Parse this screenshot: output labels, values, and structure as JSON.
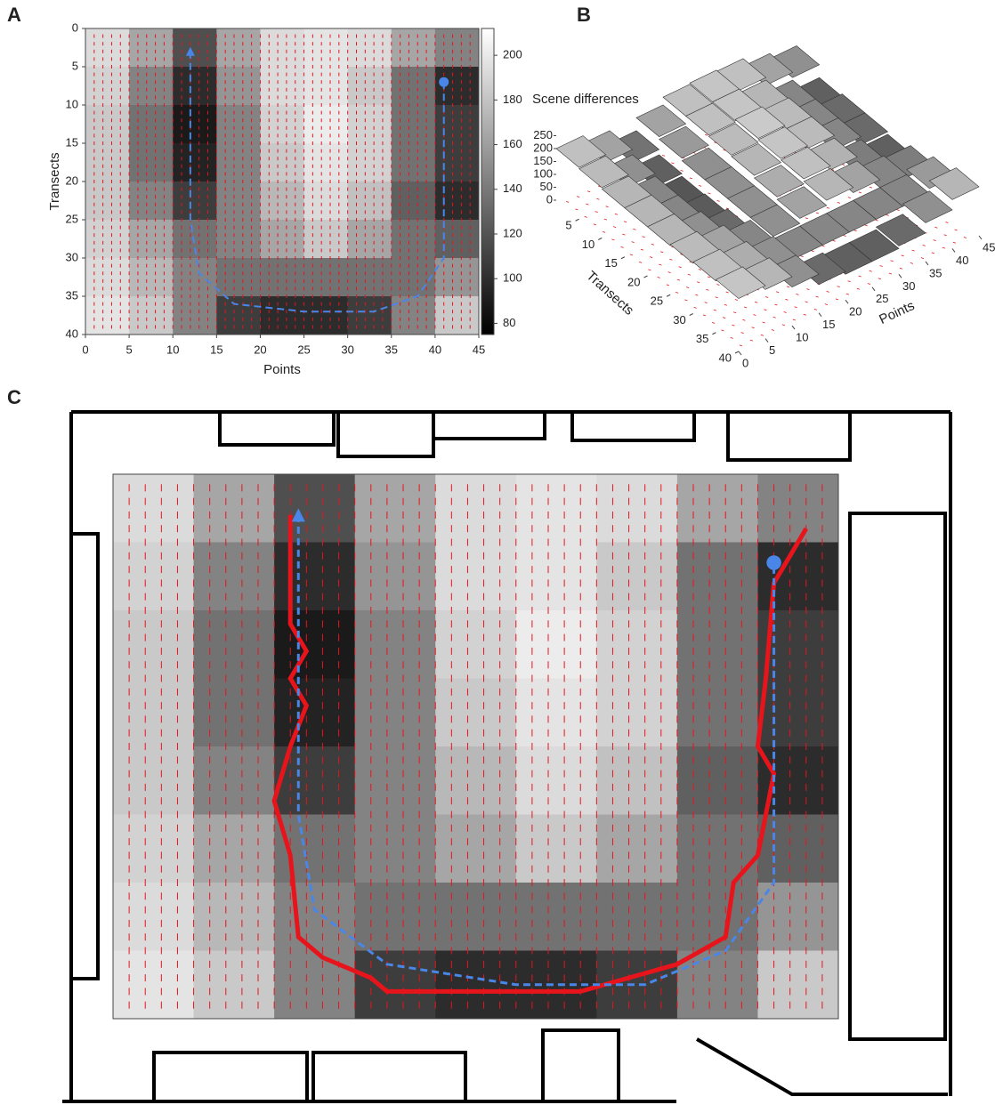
{
  "chart_data": [
    {
      "type": "heatmap",
      "label": "A",
      "xlabel": "Points",
      "ylabel": "Transects",
      "xlim": [
        0,
        45
      ],
      "xticks": [
        0,
        5,
        10,
        15,
        20,
        25,
        30,
        35,
        40,
        45
      ],
      "ylim": [
        0,
        40
      ],
      "yticks": [
        0,
        5,
        10,
        15,
        20,
        25,
        30,
        35,
        40
      ],
      "zlim": [
        75,
        212
      ],
      "zticks": [
        80,
        100,
        120,
        140,
        160,
        180,
        200
      ],
      "z": [
        [
          200,
          170,
          120,
          170,
          200,
          205,
          200,
          170,
          150
        ],
        [
          195,
          150,
          100,
          160,
          200,
          205,
          190,
          140,
          100
        ],
        [
          190,
          140,
          90,
          150,
          195,
          210,
          195,
          140,
          110
        ],
        [
          190,
          140,
          95,
          150,
          190,
          205,
          195,
          140,
          110
        ],
        [
          190,
          150,
          110,
          150,
          180,
          200,
          185,
          130,
          100
        ],
        [
          195,
          170,
          140,
          150,
          170,
          190,
          170,
          140,
          130
        ],
        [
          200,
          180,
          150,
          140,
          140,
          140,
          140,
          140,
          160
        ],
        [
          205,
          190,
          150,
          110,
          100,
          100,
          110,
          150,
          190
        ]
      ],
      "path": {
        "x": [
          12,
          12,
          13,
          17,
          25,
          33,
          38,
          41,
          41
        ],
        "y": [
          3,
          25,
          32,
          36,
          37,
          37,
          35,
          30,
          7
        ]
      },
      "path_color": "#4a86e8"
    },
    {
      "type": "surface",
      "label": "B",
      "zlabel": "Scene differences",
      "xlabel": "Points",
      "ylabel": "Transects",
      "xlim": [
        0,
        45
      ],
      "xticks": [
        0,
        5,
        10,
        15,
        20,
        25,
        30,
        35,
        40,
        45
      ],
      "ylim": [
        0,
        40
      ],
      "yticks": [
        5,
        10,
        15,
        20,
        25,
        30,
        35,
        40
      ],
      "zlim": [
        0,
        250
      ],
      "zticks": [
        0,
        50,
        100,
        150,
        200,
        250
      ],
      "z": [
        [
          200,
          170,
          120,
          170,
          200,
          205,
          200,
          170,
          150
        ],
        [
          195,
          150,
          100,
          160,
          200,
          205,
          190,
          140,
          100
        ],
        [
          190,
          140,
          90,
          150,
          195,
          210,
          195,
          140,
          110
        ],
        [
          190,
          140,
          95,
          150,
          190,
          205,
          195,
          140,
          110
        ],
        [
          190,
          150,
          110,
          150,
          180,
          200,
          185,
          130,
          100
        ],
        [
          195,
          170,
          140,
          150,
          170,
          190,
          170,
          140,
          130
        ],
        [
          200,
          180,
          150,
          140,
          140,
          140,
          140,
          140,
          160
        ],
        [
          205,
          190,
          150,
          110,
          100,
          100,
          110,
          150,
          190
        ]
      ]
    },
    {
      "type": "map",
      "label": "C",
      "xlim": [
        0,
        45
      ],
      "ylim": [
        0,
        40
      ],
      "zlim": [
        75,
        212
      ],
      "z": [
        [
          200,
          170,
          120,
          170,
          200,
          205,
          200,
          170,
          150
        ],
        [
          195,
          150,
          100,
          160,
          200,
          205,
          190,
          140,
          100
        ],
        [
          190,
          140,
          90,
          150,
          195,
          210,
          195,
          140,
          110
        ],
        [
          190,
          140,
          95,
          150,
          190,
          205,
          195,
          140,
          110
        ],
        [
          190,
          150,
          110,
          150,
          180,
          200,
          185,
          130,
          100
        ],
        [
          195,
          170,
          140,
          150,
          170,
          190,
          170,
          140,
          130
        ],
        [
          200,
          180,
          150,
          140,
          140,
          140,
          140,
          140,
          160
        ],
        [
          205,
          190,
          150,
          110,
          100,
          100,
          110,
          150,
          190
        ]
      ],
      "path": {
        "x": [
          11.5,
          11.5,
          12.5,
          17,
          25,
          33,
          38,
          41,
          41
        ],
        "y": [
          3,
          25,
          32,
          36,
          37.5,
          37.5,
          35,
          30,
          6.5
        ]
      },
      "path_color": "#4a86e8",
      "route": {
        "x": [
          43,
          42,
          41,
          40.5,
          40,
          41,
          40.5,
          40,
          38.5,
          38,
          35,
          29,
          17,
          16,
          13,
          11.5,
          11,
          10,
          11,
          12,
          11,
          12,
          11,
          11
        ],
        "y": [
          4,
          6,
          8,
          15,
          20,
          22,
          25,
          28,
          30,
          34,
          36,
          38,
          38,
          37,
          35.5,
          34,
          28,
          24,
          20,
          17,
          15,
          13,
          11,
          3
        ]
      },
      "route_color": "#e8141b"
    }
  ]
}
